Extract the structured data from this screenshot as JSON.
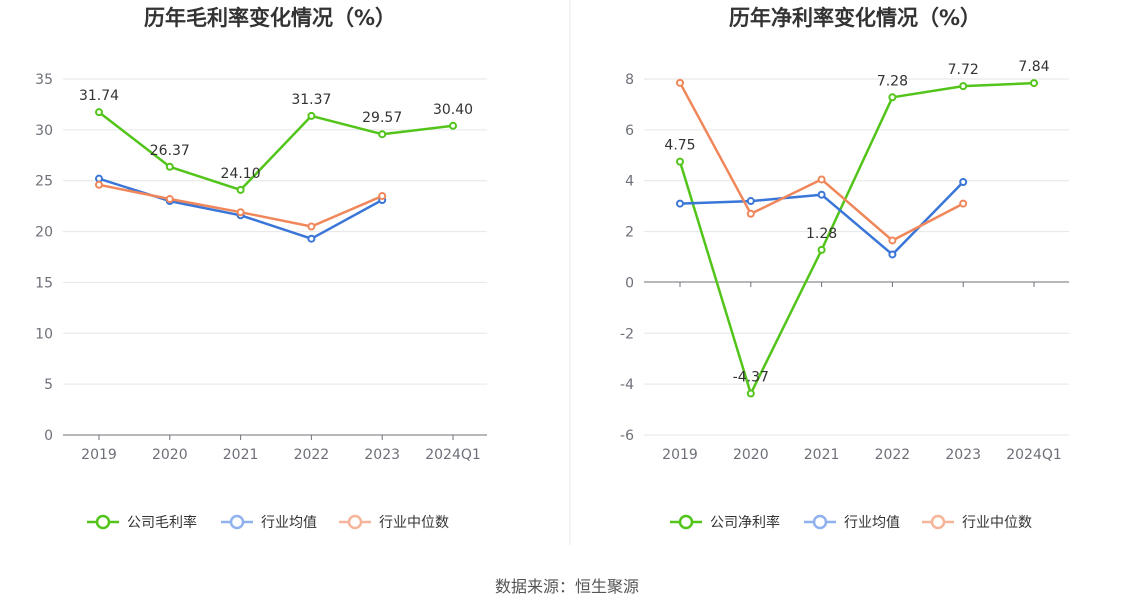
{
  "source": "数据来源：恒生聚源",
  "chart_data": [
    {
      "type": "line",
      "title": "历年毛利率变化情况（%）",
      "categories": [
        "2019",
        "2020",
        "2021",
        "2022",
        "2023",
        "2024Q1"
      ],
      "ylim": [
        0,
        35
      ],
      "yticks": [
        0,
        5,
        10,
        15,
        20,
        25,
        30,
        35
      ],
      "grid": true,
      "legend_position": "bottom",
      "series": [
        {
          "name": "公司毛利率",
          "color": "#52c41a",
          "values": [
            31.74,
            26.37,
            24.1,
            31.37,
            29.57,
            30.4
          ],
          "show_labels": true,
          "labels": [
            "31.74",
            "26.37",
            "24.10",
            "31.37",
            "29.57",
            "30.40"
          ]
        },
        {
          "name": "行业均值",
          "color": "#3a75d8",
          "values": [
            25.2,
            23.0,
            21.6,
            19.3,
            23.1,
            null
          ],
          "show_labels": false
        },
        {
          "name": "行业中位数",
          "color": "#f0875a",
          "values": [
            24.6,
            23.2,
            21.9,
            20.5,
            23.5,
            null
          ],
          "show_labels": false
        }
      ]
    },
    {
      "type": "line",
      "title": "历年净利率变化情况（%）",
      "categories": [
        "2019",
        "2020",
        "2021",
        "2022",
        "2023",
        "2024Q1"
      ],
      "ylim": [
        -6,
        8
      ],
      "yticks": [
        -6,
        -4,
        -2,
        0,
        2,
        4,
        6,
        8
      ],
      "grid": true,
      "legend_position": "bottom",
      "series": [
        {
          "name": "公司净利率",
          "color": "#52c41a",
          "values": [
            4.75,
            -4.37,
            1.28,
            7.28,
            7.72,
            7.84
          ],
          "show_labels": true,
          "labels": [
            "4.75",
            "-4.37",
            "1.28",
            "7.28",
            "7.72",
            "7.84"
          ]
        },
        {
          "name": "行业均值",
          "color": "#3a75d8",
          "values": [
            3.1,
            3.2,
            3.45,
            1.1,
            3.95,
            null
          ],
          "show_labels": false
        },
        {
          "name": "行业中位数",
          "color": "#f0875a",
          "values": [
            7.85,
            2.7,
            4.05,
            1.65,
            3.1,
            null
          ],
          "show_labels": false
        }
      ]
    }
  ]
}
